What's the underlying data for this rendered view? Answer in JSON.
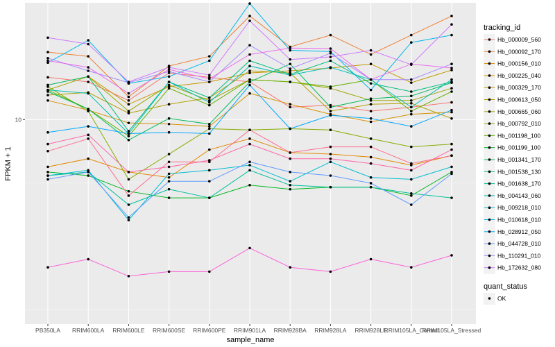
{
  "chart_data": {
    "type": "line",
    "xlabel": "sample_name",
    "ylabel": "FPKM + 1",
    "y_scale": "log10",
    "ylim": [
      1.55,
      29
    ],
    "y_ticks": [
      10
    ],
    "y_tick_labels": [
      "10"
    ],
    "grid": true,
    "legend_position": "right",
    "legend_title": "tracking_id",
    "shape_legend_title": "quant_status",
    "shape_legend_entries": [
      "OK"
    ],
    "categories": [
      "PB350LA",
      "RRIM600LA",
      "RRIM600LE",
      "RRIM600SE",
      "RRIM600PE",
      "RRIM901LA",
      "RRIM928BA",
      "RRIM928LA",
      "RRIM928LE",
      "RRIM105LA_Control",
      "RRIM105LA_Stressed"
    ],
    "series": [
      {
        "name": "Hb_000009_560",
        "color": "#F8766D",
        "values": [
          14.7,
          14.1,
          11.9,
          15.3,
          14.7,
          14.1,
          11.2,
          11.4,
          10.8,
          11.2,
          11.7
        ]
      },
      {
        "name": "Hb_000092_170",
        "color": "#EE7F34",
        "values": [
          18.5,
          17.8,
          12.3,
          16.3,
          17.8,
          25.7,
          19.4,
          21.6,
          18.1,
          21.6,
          25.7
        ]
      },
      {
        "name": "Hb_000156_010",
        "color": "#E38900",
        "values": [
          6.5,
          7.0,
          6.2,
          5.9,
          7.6,
          8.4,
          7.4,
          7.3,
          7.1,
          6.6,
          7.2
        ]
      },
      {
        "name": "Hb_000225_040",
        "color": "#D69100",
        "values": [
          11.9,
          10.9,
          9.7,
          9.6,
          9.4,
          12.7,
          11.5,
          10.5,
          9.8,
          10.5,
          10.7
        ]
      },
      {
        "name": "Hb_000329_170",
        "color": "#C59900",
        "values": [
          13.7,
          14.8,
          11.5,
          13.5,
          14.1,
          15.3,
          15.6,
          16.0,
          16.6,
          14.0,
          15.7
        ]
      },
      {
        "name": "Hb_000613_050",
        "color": "#B3A000",
        "values": [
          12.5,
          12.8,
          10.6,
          11.5,
          12.2,
          15.6,
          15.3,
          10.8,
          11.5,
          11.6,
          10.1
        ]
      },
      {
        "name": "Hb_000665_060",
        "color": "#9DA700",
        "values": [
          13.1,
          14.8,
          10.8,
          13.7,
          11.9,
          14.4,
          14.1,
          13.3,
          11.9,
          11.9,
          13.3
        ]
      },
      {
        "name": "Hb_000792_010",
        "color": "#85AD00",
        "values": [
          13.5,
          10.8,
          5.8,
          7.3,
          9.2,
          9.1,
          9.2,
          9.1,
          8.4,
          7.8,
          8.0
        ]
      },
      {
        "name": "Hb_001198_100",
        "color": "#64B200",
        "values": [
          13.1,
          11.0,
          8.6,
          13.3,
          11.4,
          14.4,
          14.1,
          13.5,
          14.4,
          10.8,
          12.9
        ]
      },
      {
        "name": "Hb_001199_100",
        "color": "#00B81F",
        "values": [
          6.2,
          6.0,
          5.2,
          4.9,
          4.9,
          5.5,
          5.3,
          5.4,
          5.4,
          5.0,
          6.2
        ]
      },
      {
        "name": "Hb_001341_170",
        "color": "#00BC59",
        "values": [
          12.9,
          11.0,
          8.3,
          10.1,
          9.6,
          14.1,
          16.6,
          11.2,
          12.1,
          12.4,
          14.0
        ]
      },
      {
        "name": "Hb_001538_130",
        "color": "#00BF7D",
        "values": [
          13.7,
          14.8,
          9.0,
          14.1,
          12.2,
          17.1,
          15.1,
          17.1,
          13.9,
          12.9,
          14.1
        ]
      },
      {
        "name": "Hb_001638_170",
        "color": "#00C19C",
        "values": [
          6.0,
          6.2,
          4.6,
          5.3,
          4.9,
          6.3,
          5.5,
          5.4,
          5.4,
          5.1,
          4.9
        ]
      },
      {
        "name": "Hb_004143_060",
        "color": "#00C0B8",
        "values": [
          13.1,
          12.7,
          8.8,
          14.1,
          11.7,
          16.3,
          15.0,
          16.1,
          14.4,
          11.2,
          14.4
        ]
      },
      {
        "name": "Hb_009218_010",
        "color": "#00BDD1",
        "values": [
          6.0,
          6.3,
          4.0,
          6.1,
          6.3,
          6.6,
          5.7,
          6.8,
          5.9,
          5.8,
          6.5
        ]
      },
      {
        "name": "Hb_010618_010",
        "color": "#00B6EB",
        "values": [
          16.8,
          20.6,
          13.9,
          14.8,
          17.1,
          28.8,
          18.8,
          18.6,
          13.1,
          20.2,
          21.6
        ]
      },
      {
        "name": "Hb_028912_050",
        "color": "#00A9FF",
        "values": [
          8.9,
          9.4,
          8.8,
          8.9,
          8.8,
          13.7,
          9.2,
          10.4,
          10.1,
          9.4,
          10.9
        ]
      },
      {
        "name": "Hb_044728_010",
        "color": "#619CFF",
        "values": [
          5.8,
          6.2,
          4.1,
          5.7,
          5.7,
          6.8,
          6.2,
          6.0,
          5.6,
          4.6,
          6.1
        ]
      },
      {
        "name": "Hb_110291_010",
        "color": "#A58AFF",
        "values": [
          17.5,
          15.6,
          14.0,
          15.5,
          14.1,
          19.7,
          15.9,
          18.3,
          14.4,
          14.4,
          16.6
        ]
      },
      {
        "name": "Hb_172632_080",
        "color": "#CF78FF",
        "values": [
          21.1,
          19.9,
          14.1,
          16.1,
          15.0,
          24.6,
          17.3,
          17.7,
          18.8,
          16.5,
          23.8
        ]
      },
      {
        "name": "",
        "color": "#EB6CEC",
        "values": [
          17.1,
          16.1,
          12.7,
          15.8,
          14.5,
          18.1,
          19.2,
          19.1,
          14.4,
          16.6,
          16.0
        ]
      },
      {
        "name": "",
        "color": "#FB61D7",
        "values": [
          2.6,
          2.8,
          2.4,
          2.5,
          2.5,
          3.1,
          2.6,
          2.5,
          2.8,
          2.6,
          2.9
        ]
      },
      {
        "name": "",
        "color": "#FF66A8",
        "values": [
          8.0,
          8.7,
          6.2,
          6.5,
          6.9,
          8.0,
          7.0,
          7.0,
          6.7,
          6.3,
          7.6
        ]
      },
      {
        "name": "",
        "color": "#FF6C8F",
        "values": [
          7.5,
          8.4,
          5.0,
          6.8,
          6.8,
          9.1,
          7.4,
          7.8,
          7.8,
          6.7,
          7.2
        ]
      }
    ]
  }
}
